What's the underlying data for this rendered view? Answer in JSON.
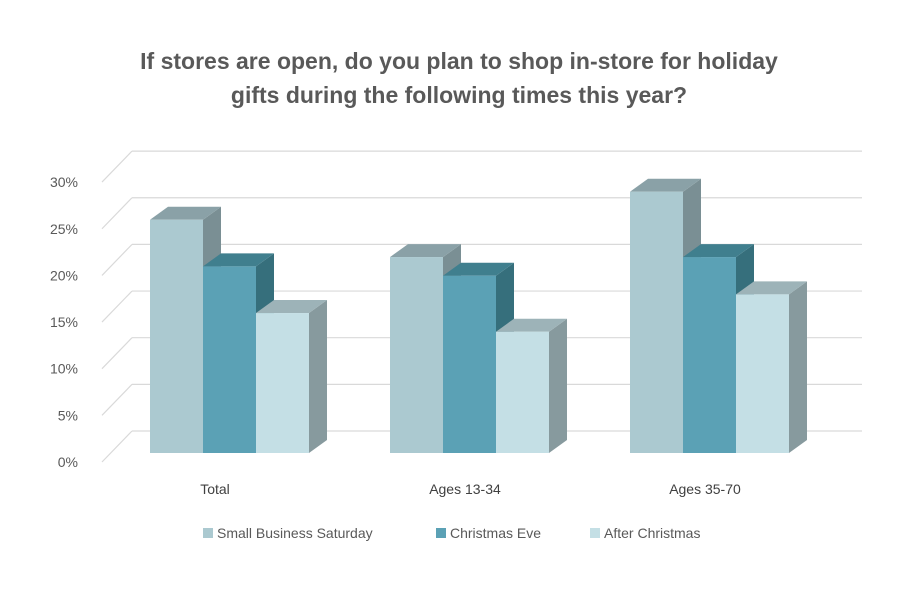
{
  "chart_data": {
    "type": "bar",
    "title_lines": [
      "If stores are open, do you plan to shop in-store for holiday",
      "gifts during the following times this year?"
    ],
    "categories": [
      "Total",
      "Ages 13-34",
      "Ages 35-70"
    ],
    "series": [
      {
        "name": "Small Business Saturday",
        "values": [
          25,
          21,
          28
        ],
        "color": "#abc9d0",
        "top": "#8aa1a7",
        "side": "#7a8f94"
      },
      {
        "name": "Christmas Eve",
        "values": [
          20,
          19,
          21
        ],
        "color": "#5ba1b5",
        "top": "#407f8e",
        "side": "#366f7c"
      },
      {
        "name": "After Christmas",
        "values": [
          15,
          13,
          17
        ],
        "color": "#c4dfe5",
        "top": "#9db3b8",
        "side": "#879a9e"
      }
    ],
    "yticks": [
      "0%",
      "5%",
      "10%",
      "15%",
      "20%",
      "25%",
      "30%"
    ],
    "ylim": [
      0,
      30
    ],
    "xlabel": "",
    "ylabel": "",
    "grid": true,
    "legend": "bottom"
  }
}
